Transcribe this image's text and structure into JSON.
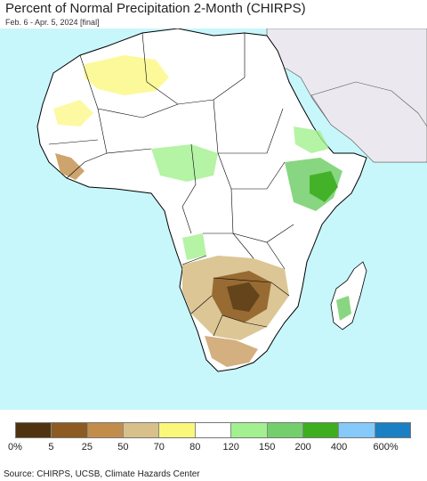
{
  "header": {
    "title": "Percent of Normal Precipitation 2-Month (CHIRPS)",
    "subtitle": "Feb. 6 - Apr. 5, 2024 [final]"
  },
  "map": {
    "ocean_color": "#c7f6fb",
    "land_color": "#ffffff",
    "outside_region_color": "#ece8ef",
    "border_color": "#000000"
  },
  "legend": {
    "categories": [
      {
        "color": "#4f3310"
      },
      {
        "color": "#8c5a22"
      },
      {
        "color": "#c28d4a"
      },
      {
        "color": "#d8c08a"
      },
      {
        "color": "#fbf77a"
      },
      {
        "color": "#ffffff"
      },
      {
        "color": "#a2f08f"
      },
      {
        "color": "#73cf6b"
      },
      {
        "color": "#3cae1f"
      },
      {
        "color": "#86c9fb"
      },
      {
        "color": "#1a7fc3"
      }
    ],
    "labels": [
      "0%",
      "5",
      "25",
      "50",
      "70",
      "80",
      "120",
      "150",
      "200",
      "400",
      "600%"
    ]
  },
  "footer": {
    "source": "Source: CHIRPS, UCSB, Climate Hazards Center"
  }
}
